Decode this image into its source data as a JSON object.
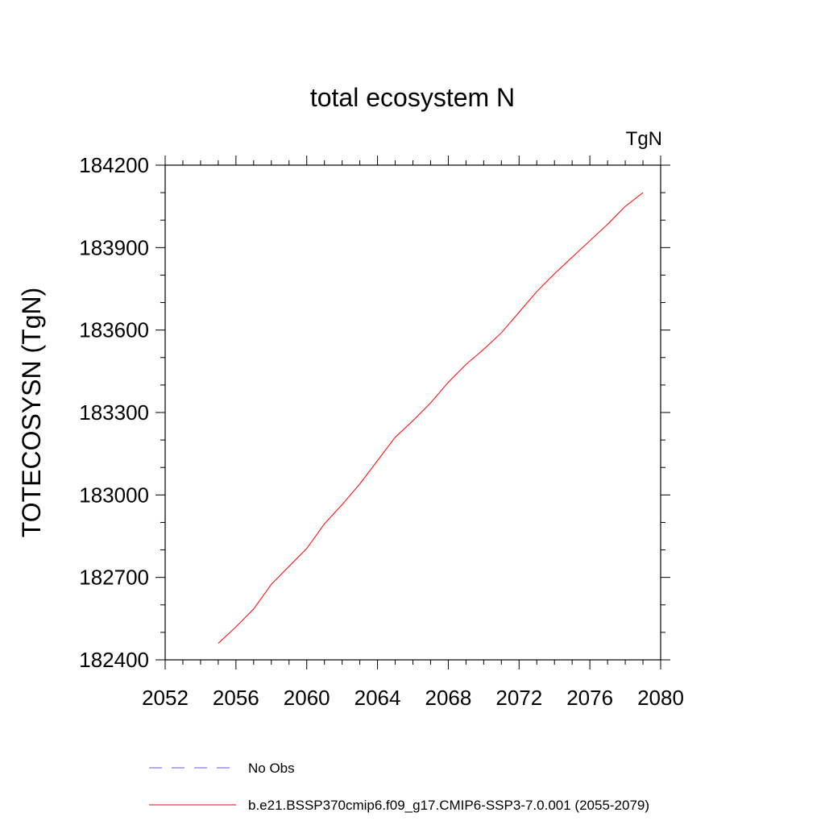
{
  "chart_data": {
    "type": "line",
    "title": "total ecosystem N",
    "units_label": "TgN",
    "xlabel": "",
    "ylabel": "TOTECOSYSN  (TgN)",
    "xlim": [
      2052,
      2080
    ],
    "ylim": [
      182400,
      184200
    ],
    "xticks": [
      "2052",
      "2056",
      "2060",
      "2064",
      "2068",
      "2072",
      "2076",
      "2080"
    ],
    "yticks": [
      "182400",
      "182700",
      "183000",
      "183300",
      "183600",
      "183900",
      "184200"
    ],
    "grid": false,
    "legend_position": "bottom",
    "series": [
      {
        "name": "b.e21.BSSP370cmip6.f09_g17.CMIP6-SSP3-7.0.001 (2055-2079)",
        "color": "#ff0000",
        "style": "solid",
        "x": [
          2055,
          2056,
          2057,
          2058,
          2059,
          2060,
          2061,
          2062,
          2063,
          2064,
          2065,
          2066,
          2067,
          2068,
          2069,
          2070,
          2071,
          2072,
          2073,
          2074,
          2075,
          2076,
          2077,
          2078,
          2079
        ],
        "y": [
          182460,
          182520,
          182585,
          182675,
          182740,
          182805,
          182895,
          182965,
          183040,
          183125,
          183210,
          183270,
          183335,
          183410,
          183475,
          183530,
          183590,
          183665,
          183740,
          183805,
          183865,
          183925,
          183985,
          184050,
          184100
        ]
      },
      {
        "name": "No Obs",
        "color": "#6a5acd",
        "style": "dashed",
        "x": [],
        "y": []
      }
    ]
  }
}
